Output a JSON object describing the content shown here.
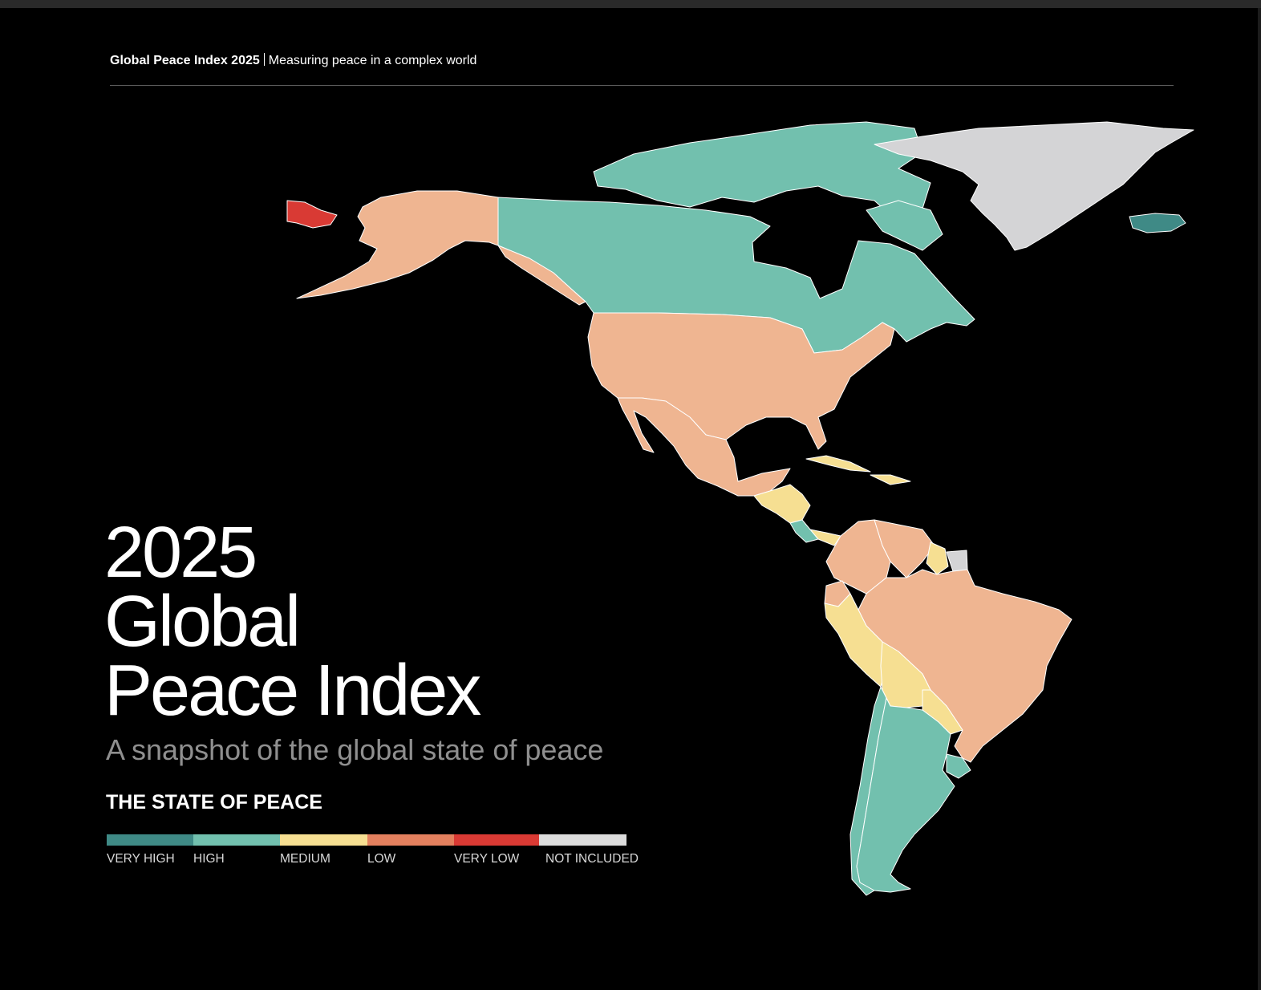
{
  "header": {
    "title": "Global Peace Index 2025",
    "subtitle": "Measuring peace in a complex world"
  },
  "hero": {
    "line1": "2025",
    "line2": "Global",
    "line3": "Peace Index",
    "tagline": "A snapshot of the global state of peace"
  },
  "legend": {
    "title": "THE STATE OF PEACE",
    "items": [
      {
        "label": "VERY HIGH",
        "color": "#3f8a86"
      },
      {
        "label": "HIGH",
        "color": "#72c0ae"
      },
      {
        "label": "MEDIUM",
        "color": "#f6df92"
      },
      {
        "label": "LOW",
        "color": "#e3805e"
      },
      {
        "label": "VERY LOW",
        "color": "#d93a34"
      },
      {
        "label": "NOT INCLUDED",
        "color": "#dcdcdc"
      }
    ]
  },
  "map": {
    "region": "Americas",
    "countries": [
      {
        "name": "Canada",
        "level": "HIGH"
      },
      {
        "name": "United States",
        "level": "LOW"
      },
      {
        "name": "Mexico",
        "level": "LOW"
      },
      {
        "name": "Greenland",
        "level": "NOT INCLUDED"
      },
      {
        "name": "Iceland",
        "level": "VERY HIGH"
      },
      {
        "name": "Russia (Chukotka)",
        "level": "VERY LOW"
      },
      {
        "name": "Brazil",
        "level": "LOW"
      },
      {
        "name": "Colombia",
        "level": "LOW"
      },
      {
        "name": "Venezuela",
        "level": "LOW"
      },
      {
        "name": "Peru",
        "level": "MEDIUM"
      },
      {
        "name": "Bolivia",
        "level": "MEDIUM"
      },
      {
        "name": "Paraguay",
        "level": "MEDIUM"
      },
      {
        "name": "Argentina",
        "level": "HIGH"
      },
      {
        "name": "Chile",
        "level": "HIGH"
      },
      {
        "name": "Uruguay",
        "level": "HIGH"
      },
      {
        "name": "Ecuador",
        "level": "LOW"
      },
      {
        "name": "Guyana",
        "level": "MEDIUM"
      },
      {
        "name": "Suriname",
        "level": "NOT INCLUDED"
      },
      {
        "name": "Cuba",
        "level": "MEDIUM"
      },
      {
        "name": "Costa Rica",
        "level": "HIGH"
      },
      {
        "name": "Panama",
        "level": "MEDIUM"
      }
    ]
  },
  "colors": {
    "background": "#000000",
    "high": "#72c0ae",
    "very_high": "#3f8a86",
    "medium": "#f6df92",
    "low": "#efb591",
    "very_low": "#d93a34",
    "not_included": "#d4d4d6"
  }
}
